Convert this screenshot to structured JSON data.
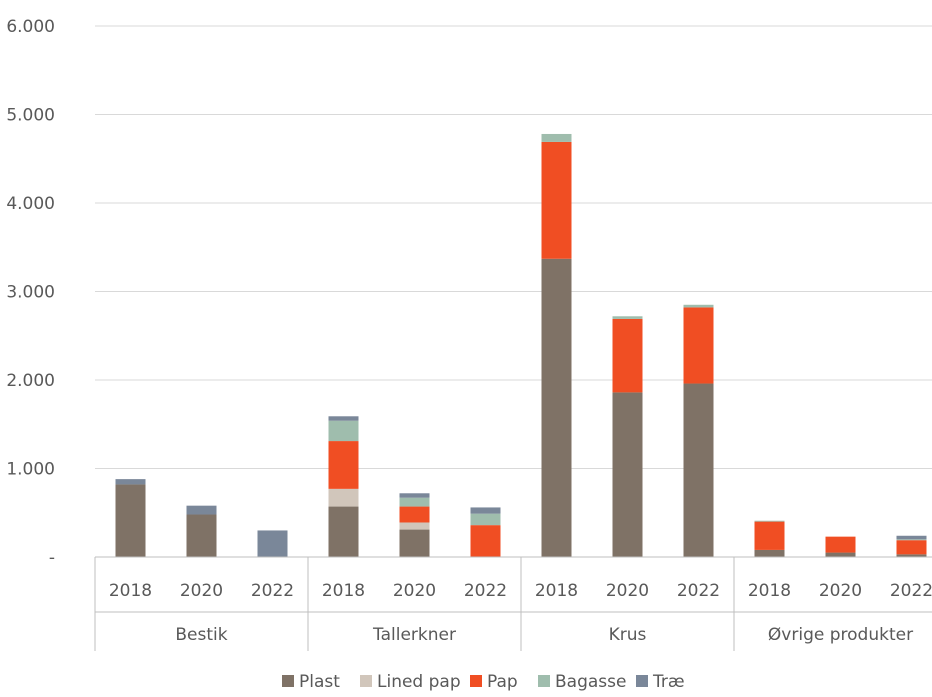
{
  "chart_data": {
    "type": "bar",
    "stacked": true,
    "title": "",
    "xlabel": "",
    "ylabel": "",
    "ylim": [
      0,
      6000
    ],
    "y_ticks": [
      {
        "value": 0,
        "label": "-"
      },
      {
        "value": 1000,
        "label": "1.000"
      },
      {
        "value": 2000,
        "label": "2.000"
      },
      {
        "value": 3000,
        "label": "3.000"
      },
      {
        "value": 4000,
        "label": "4.000"
      },
      {
        "value": 5000,
        "label": "5.000"
      },
      {
        "value": 6000,
        "label": "6.000"
      }
    ],
    "grid": true,
    "legend_position": "bottom",
    "groups": [
      {
        "label": "Bestik",
        "categories": [
          "2018",
          "2020",
          "2022"
        ]
      },
      {
        "label": "Tallerkner",
        "categories": [
          "2018",
          "2020",
          "2022"
        ]
      },
      {
        "label": "Krus",
        "categories": [
          "2018",
          "2020",
          "2022"
        ]
      },
      {
        "label": "Øvrige produkter",
        "categories": [
          "2018",
          "2020",
          "2022"
        ]
      }
    ],
    "series": [
      {
        "name": "Plast",
        "color": "#7f7266",
        "values": [
          820,
          480,
          0,
          570,
          310,
          0,
          3370,
          1860,
          1960,
          80,
          50,
          30
        ]
      },
      {
        "name": "Lined pap",
        "color": "#d1c6bb",
        "values": [
          0,
          0,
          0,
          200,
          80,
          0,
          0,
          0,
          0,
          0,
          0,
          0
        ]
      },
      {
        "name": "Pap",
        "color": "#f04e23",
        "values": [
          0,
          0,
          0,
          540,
          180,
          360,
          1320,
          830,
          860,
          320,
          180,
          160
        ]
      },
      {
        "name": "Bagasse",
        "color": "#9fbdad",
        "values": [
          0,
          0,
          0,
          230,
          100,
          130,
          90,
          30,
          30,
          10,
          0,
          10
        ]
      },
      {
        "name": "Træ",
        "color": "#7a8799",
        "values": [
          60,
          100,
          300,
          50,
          50,
          70,
          0,
          0,
          0,
          0,
          0,
          40
        ]
      }
    ]
  }
}
